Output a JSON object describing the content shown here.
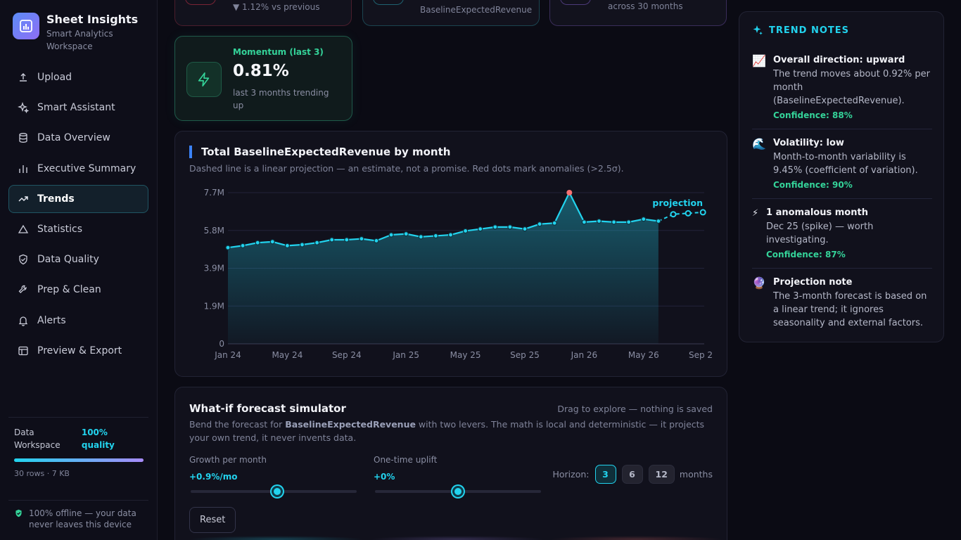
{
  "app": {
    "title": "Sheet Insights",
    "subtitle": "Smart Analytics Workspace"
  },
  "nav": {
    "items": [
      {
        "label": "Upload",
        "icon": "upload-icon"
      },
      {
        "label": "Smart Assistant",
        "icon": "sparkle-icon"
      },
      {
        "label": "Data Overview",
        "icon": "database-icon"
      },
      {
        "label": "Executive Summary",
        "icon": "bar-chart-icon"
      },
      {
        "label": "Trends",
        "icon": "trending-up-icon",
        "active": true
      },
      {
        "label": "Statistics",
        "icon": "triangle-icon"
      },
      {
        "label": "Data Quality",
        "icon": "shield-check-icon"
      },
      {
        "label": "Prep & Clean",
        "icon": "wrench-icon"
      },
      {
        "label": "Alerts",
        "icon": "bell-icon"
      },
      {
        "label": "Preview & Export",
        "icon": "layout-icon"
      }
    ]
  },
  "workspace": {
    "label": "Data Workspace",
    "quality": "100% quality",
    "quality_fraction": 1.0,
    "meta": "30 rows · 7 KB"
  },
  "offline": "100% offline — your data never leaves this device",
  "top_cards": {
    "card1_note": "▼ 1.12% vs previous",
    "card2_note": "BaselineExpectedRevenue",
    "card3_note": "across 30 months"
  },
  "momentum": {
    "label": "Momentum (last 3)",
    "value": "0.81%",
    "note": "last 3 months trending up",
    "icon": "bolt-icon"
  },
  "chart": {
    "title": "Total BaselineExpectedRevenue by month",
    "subtitle": "Dashed line is a linear projection — an estimate, not a promise. Red dots mark anomalies (>2.5σ).",
    "projection_label": "projection"
  },
  "chart_data": {
    "type": "line",
    "y_tick_labels": [
      "0",
      "1.9M",
      "3.9M",
      "5.8M",
      "7.7M"
    ],
    "y_ticks": [
      0,
      1.925,
      3.85,
      5.775,
      7.7
    ],
    "ylim": [
      0,
      7.7
    ],
    "x_tick_labels": [
      "Jan 24",
      "May 24",
      "Sep 24",
      "Jan 25",
      "May 25",
      "Sep 25",
      "Jan 26",
      "May 26",
      "Sep 2"
    ],
    "x_tick_index": [
      0,
      4,
      8,
      12,
      16,
      20,
      24,
      28,
      32
    ],
    "series": [
      {
        "values": [
          4.9,
          5.0,
          5.15,
          5.2,
          5.0,
          5.05,
          5.15,
          5.3,
          5.3,
          5.35,
          5.25,
          5.55,
          5.6,
          5.45,
          5.5,
          5.55,
          5.75,
          5.85,
          5.95,
          5.95,
          5.85,
          6.1,
          6.15,
          7.7,
          6.2,
          6.25,
          6.2,
          6.2,
          6.35,
          6.25
        ]
      },
      {
        "values": [
          6.25,
          6.6,
          6.65,
          6.7
        ],
        "start_index": 29,
        "dashed": true
      }
    ],
    "anomaly_index": [
      23
    ],
    "colors": {
      "line": "#22d3ee",
      "anomaly": "#f87171"
    }
  },
  "whatif": {
    "title": "What-if forecast simulator",
    "hint": "Drag to explore — nothing is saved",
    "desc_before": "Bend the forecast for ",
    "desc_metric": "BaselineExpectedRevenue",
    "desc_after": " with two levers. The math is local and deterministic — it projects your own trend, it never invents data.",
    "growth_label": "Growth per month",
    "growth_value": "+0.9%/mo",
    "growth_position": 0.52,
    "uplift_label": "One-time uplift",
    "uplift_value": "+0%",
    "uplift_position": 0.5,
    "horizon_label": "Horizon:",
    "horizon_options": [
      "3",
      "6",
      "12"
    ],
    "horizon_selected": "3",
    "horizon_unit": "months",
    "reset_label": "Reset"
  },
  "notes": {
    "title": "TREND NOTES",
    "items": [
      {
        "icon": "📈",
        "title": "Overall direction: upward",
        "text": "The trend moves about 0.92% per month (BaselineExpectedRevenue).",
        "confidence": "Confidence: 88%"
      },
      {
        "icon": "🌊",
        "title": "Volatility: low",
        "text": "Month-to-month variability is 9.45% (coefficient of variation).",
        "confidence": "Confidence: 90%"
      },
      {
        "icon": "⚡",
        "title": "1 anomalous month",
        "text": "Dec 25 (spike) — worth investigating.",
        "confidence": "Confidence: 87%"
      },
      {
        "icon": "🔮",
        "title": "Projection note",
        "text": "The 3-month forecast is based on a linear trend; it ignores seasonality and external factors.",
        "confidence": ""
      }
    ]
  }
}
